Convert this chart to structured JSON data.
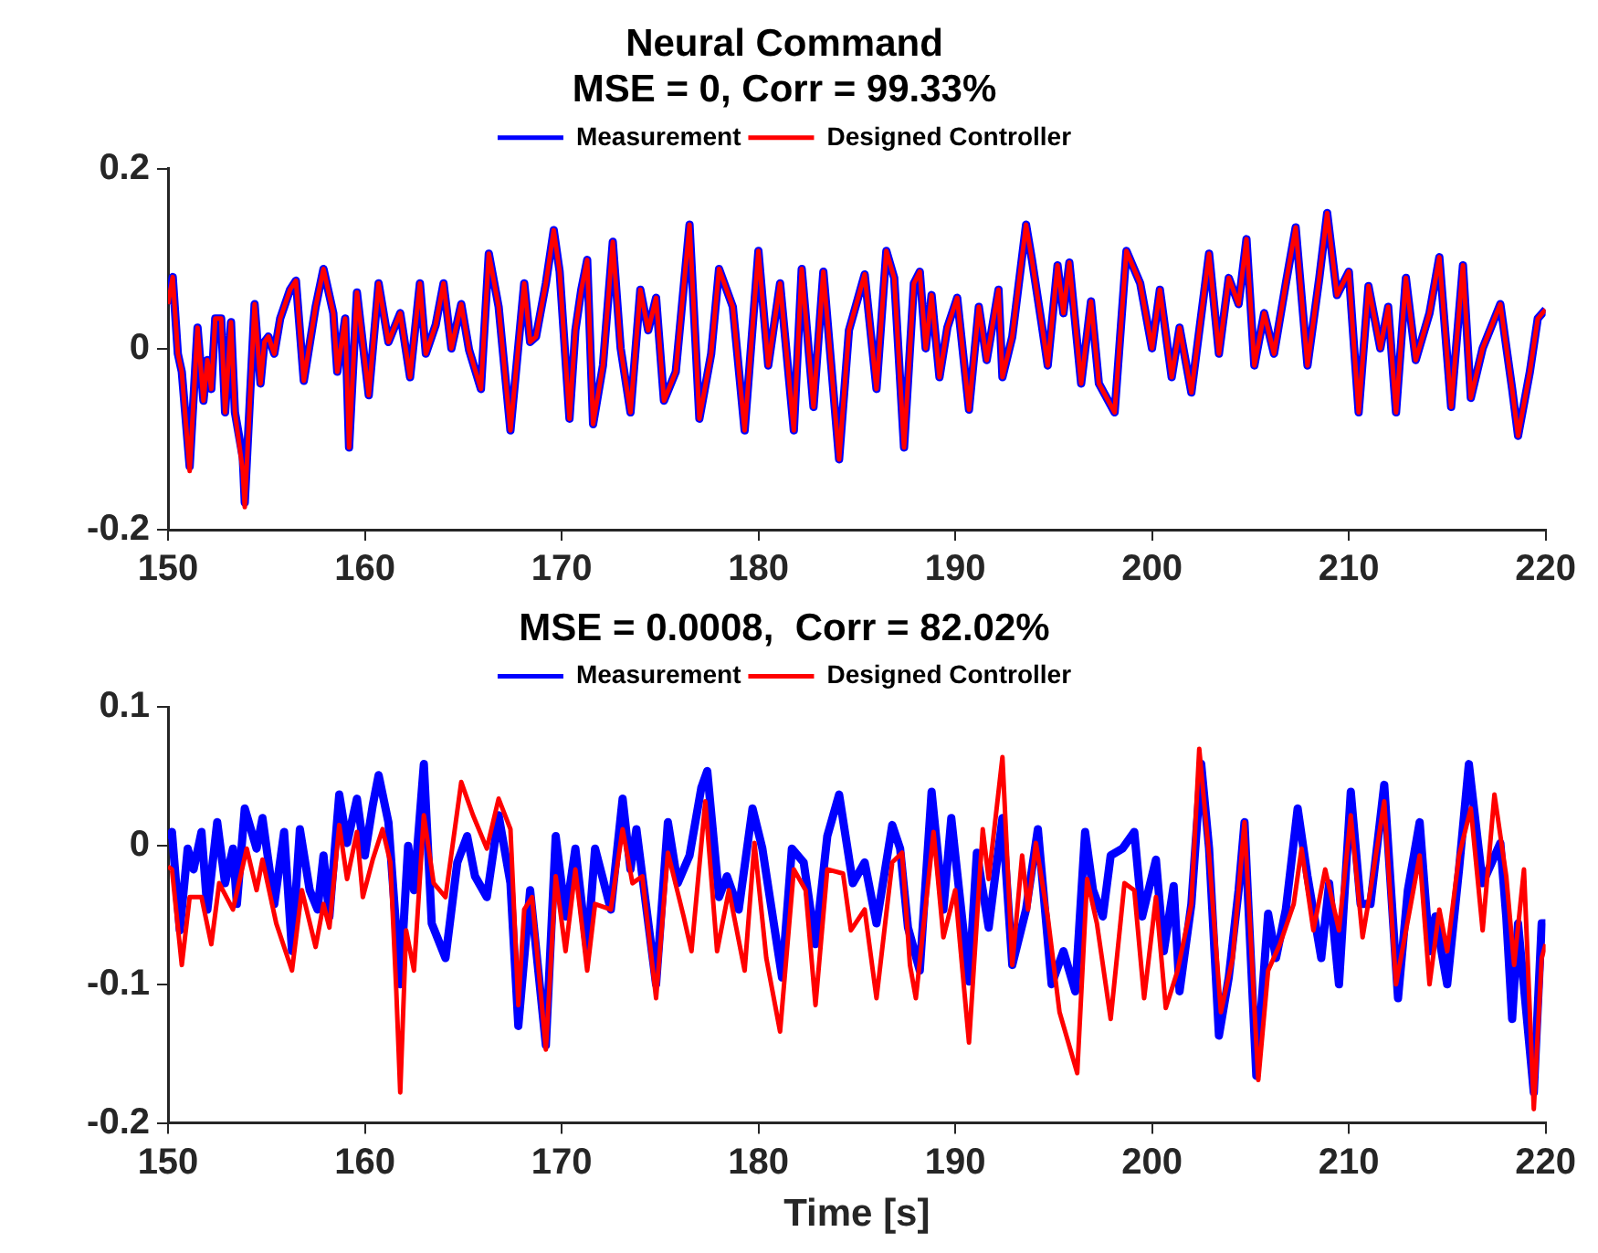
{
  "chart_data": [
    {
      "type": "line",
      "title": "Neural Command",
      "subtitle": "MSE = 0, Corr = 99.33%",
      "xlim": [
        150,
        220
      ],
      "xticks": [
        150,
        160,
        170,
        180,
        190,
        200,
        210,
        220
      ],
      "ylim": [
        -0.2,
        0.2
      ],
      "yticks": [
        -0.2,
        0,
        0.2
      ],
      "grid": false,
      "legend": "top",
      "marker": "none",
      "line_style": "solid",
      "x": [
        150.0,
        150.24,
        150.5,
        150.7,
        151.1,
        151.5,
        151.8,
        152.0,
        152.2,
        152.4,
        152.7,
        152.9,
        153.2,
        153.4,
        153.8,
        153.9,
        154.4,
        154.7,
        154.9,
        155.1,
        155.4,
        155.7,
        156.2,
        156.5,
        156.9,
        157.5,
        157.9,
        158.4,
        158.6,
        159.0,
        159.2,
        159.6,
        160.2,
        160.7,
        161.2,
        161.8,
        162.3,
        162.8,
        163.1,
        163.6,
        164.0,
        164.4,
        164.9,
        165.3,
        165.9,
        166.3,
        166.8,
        167.4,
        168.1,
        168.4,
        168.7,
        169.2,
        169.6,
        169.9,
        170.4,
        170.7,
        171.0,
        171.3,
        171.6,
        172.1,
        172.6,
        173.0,
        173.5,
        174.0,
        174.4,
        174.8,
        175.2,
        175.8,
        176.5,
        177.0,
        177.6,
        178.0,
        178.7,
        179.3,
        180.0,
        180.5,
        181.1,
        181.8,
        182.2,
        182.8,
        183.3,
        184.1,
        184.6,
        185.4,
        186.0,
        186.5,
        186.9,
        187.4,
        187.9,
        188.2,
        188.5,
        188.8,
        189.2,
        189.6,
        190.1,
        190.7,
        191.2,
        191.6,
        192.2,
        192.4,
        192.9,
        193.6,
        193.9,
        194.4,
        194.7,
        195.2,
        195.5,
        195.8,
        196.4,
        196.9,
        197.3,
        198.1,
        198.7,
        199.4,
        200.0,
        200.4,
        201.0,
        201.4,
        202.0,
        202.9,
        203.4,
        203.9,
        204.4,
        204.8,
        205.2,
        205.7,
        206.2,
        206.8,
        207.3,
        207.9,
        208.5,
        208.9,
        209.4,
        210.0,
        210.5,
        211.0,
        211.6,
        212.0,
        212.4,
        212.9,
        213.4,
        214.1,
        214.6,
        215.2,
        215.8,
        216.2,
        216.8,
        217.7,
        218.3,
        218.6,
        219.2,
        219.6,
        220.0
      ],
      "series": [
        {
          "name": "Measurement",
          "color": "#0000ff",
          "values": [
            0.05,
            0.08,
            -0.005,
            -0.025,
            -0.13,
            0.024,
            -0.057,
            -0.012,
            -0.044,
            0.034,
            0.034,
            -0.07,
            0.03,
            -0.07,
            -0.12,
            -0.17,
            0.05,
            -0.038,
            0.008,
            0.014,
            -0.005,
            0.034,
            0.066,
            0.076,
            -0.035,
            0.047,
            0.089,
            0.04,
            -0.025,
            0.034,
            -0.109,
            0.063,
            -0.051,
            0.073,
            0.008,
            0.04,
            -0.031,
            0.073,
            -0.005,
            0.027,
            0.073,
            0.001,
            0.05,
            -0.001,
            -0.044,
            0.106,
            0.047,
            -0.09,
            0.073,
            0.008,
            0.014,
            0.073,
            0.132,
            0.086,
            -0.077,
            0.021,
            0.066,
            0.099,
            -0.083,
            -0.018,
            0.119,
            0.001,
            -0.07,
            0.066,
            0.021,
            0.057,
            -0.057,
            -0.025,
            0.138,
            -0.077,
            -0.005,
            0.089,
            0.047,
            -0.09,
            0.109,
            -0.018,
            0.073,
            -0.09,
            0.089,
            -0.064,
            0.086,
            -0.122,
            0.021,
            0.083,
            -0.044,
            0.109,
            0.079,
            -0.109,
            0.073,
            0.086,
            0.001,
            0.06,
            -0.031,
            0.024,
            0.057,
            -0.067,
            0.047,
            -0.012,
            0.066,
            -0.031,
            0.014,
            0.138,
            0.099,
            0.027,
            -0.018,
            0.093,
            0.04,
            0.096,
            -0.038,
            0.053,
            -0.038,
            -0.07,
            0.109,
            0.073,
            0.001,
            0.066,
            -0.031,
            0.024,
            -0.048,
            0.106,
            -0.005,
            0.079,
            0.05,
            0.122,
            -0.018,
            0.04,
            -0.005,
            0.073,
            0.135,
            -0.018,
            0.079,
            0.151,
            0.06,
            0.086,
            -0.07,
            0.07,
            0.001,
            0.047,
            -0.07,
            0.079,
            -0.012,
            0.04,
            0.102,
            -0.064,
            0.093,
            -0.054,
            0.001,
            0.05,
            -0.044,
            -0.096,
            -0.025,
            0.034,
            0.044
          ]
        },
        {
          "name": "Designed Controller",
          "color": "#ff0000",
          "values": [
            0.05,
            0.08,
            -0.005,
            -0.025,
            -0.135,
            0.024,
            -0.057,
            -0.012,
            -0.044,
            0.034,
            0.034,
            -0.07,
            0.03,
            -0.07,
            -0.135,
            -0.175,
            0.05,
            -0.038,
            0.008,
            0.014,
            -0.005,
            0.034,
            0.066,
            0.076,
            -0.035,
            0.047,
            0.089,
            0.04,
            -0.025,
            0.034,
            -0.109,
            0.063,
            -0.051,
            0.073,
            0.008,
            0.04,
            -0.031,
            0.073,
            -0.005,
            0.027,
            0.073,
            0.001,
            0.05,
            -0.001,
            -0.044,
            0.106,
            0.047,
            -0.09,
            0.073,
            0.008,
            0.014,
            0.073,
            0.132,
            0.086,
            -0.077,
            0.021,
            0.066,
            0.099,
            -0.083,
            -0.018,
            0.119,
            0.001,
            -0.07,
            0.066,
            0.021,
            0.057,
            -0.057,
            -0.025,
            0.138,
            -0.077,
            -0.005,
            0.089,
            0.047,
            -0.09,
            0.109,
            -0.018,
            0.073,
            -0.09,
            0.089,
            -0.064,
            0.086,
            -0.122,
            0.021,
            0.083,
            -0.044,
            0.109,
            0.079,
            -0.109,
            0.073,
            0.086,
            0.001,
            0.06,
            -0.031,
            0.024,
            0.057,
            -0.067,
            0.047,
            -0.012,
            0.066,
            -0.031,
            0.014,
            0.138,
            0.099,
            0.027,
            -0.018,
            0.093,
            0.04,
            0.096,
            -0.038,
            0.053,
            -0.038,
            -0.07,
            0.109,
            0.073,
            0.001,
            0.066,
            -0.031,
            0.024,
            -0.048,
            0.106,
            -0.005,
            0.079,
            0.05,
            0.122,
            -0.018,
            0.04,
            -0.005,
            0.073,
            0.135,
            -0.018,
            0.079,
            0.151,
            0.06,
            0.086,
            -0.07,
            0.07,
            0.001,
            0.047,
            -0.07,
            0.079,
            -0.012,
            0.04,
            0.102,
            -0.064,
            0.093,
            -0.054,
            0.001,
            0.05,
            -0.044,
            -0.096,
            -0.025,
            0.034,
            0.044
          ]
        }
      ]
    },
    {
      "type": "line",
      "title": "MSE = 0.0008,  Corr = 82.02%",
      "xlabel": "Time [s]",
      "xlim": [
        150,
        220
      ],
      "xticks": [
        150,
        160,
        170,
        180,
        190,
        200,
        210,
        220
      ],
      "ylim": [
        -0.2,
        0.1
      ],
      "yticks": [
        -0.2,
        -0.1,
        0,
        0.1
      ],
      "grid": false,
      "legend": "top",
      "marker": "none",
      "line_style": "solid",
      "series": [
        {
          "name": "Measurement",
          "color": "#0000ff",
          "x": [
            150.0,
            150.2,
            150.6,
            151.0,
            151.3,
            151.7,
            152.0,
            152.5,
            152.9,
            153.3,
            153.5,
            153.9,
            154.5,
            154.8,
            155.4,
            155.9,
            156.3,
            156.7,
            157.2,
            157.6,
            157.9,
            158.2,
            158.7,
            159.1,
            159.6,
            160.0,
            160.4,
            160.7,
            161.2,
            161.8,
            162.2,
            162.5,
            163.0,
            163.4,
            164.1,
            164.7,
            165.2,
            165.6,
            166.2,
            166.8,
            167.4,
            167.8,
            168.4,
            169.2,
            169.7,
            170.2,
            170.7,
            171.3,
            171.7,
            172.5,
            173.1,
            173.5,
            173.8,
            174.8,
            175.4,
            175.9,
            176.5,
            177.1,
            177.4,
            178.0,
            178.4,
            179.0,
            179.7,
            180.2,
            181.2,
            181.7,
            182.3,
            182.9,
            183.5,
            184.1,
            184.8,
            185.4,
            186.0,
            186.8,
            187.2,
            187.6,
            188.2,
            188.8,
            189.4,
            189.8,
            190.7,
            191.1,
            191.7,
            192.4,
            192.9,
            193.6,
            194.2,
            194.9,
            195.5,
            196.1,
            196.6,
            197.0,
            197.5,
            197.9,
            198.5,
            199.1,
            199.5,
            200.2,
            200.6,
            201.1,
            201.4,
            202.0,
            202.5,
            202.9,
            203.4,
            203.9,
            204.4,
            204.7,
            205.3,
            205.9,
            206.3,
            206.8,
            207.4,
            207.9,
            208.6,
            209.0,
            209.5,
            210.1,
            210.6,
            211.1,
            211.8,
            212.5,
            213.0,
            213.6,
            214.1,
            214.4,
            215.0,
            215.6,
            216.1,
            216.8,
            217.7,
            218.0,
            218.3,
            218.6,
            219.4,
            219.8,
            220.0
          ],
          "values": [
            0.005,
            0.01,
            -0.061,
            -0.002,
            -0.017,
            0.01,
            -0.046,
            0.017,
            -0.027,
            -0.002,
            -0.042,
            0.027,
            -0.002,
            0.02,
            -0.042,
            0.01,
            -0.076,
            0.012,
            -0.032,
            -0.046,
            -0.007,
            -0.051,
            0.037,
            0.002,
            0.034,
            -0.007,
            0.029,
            0.051,
            0.017,
            -0.1,
            0.0,
            -0.032,
            0.059,
            -0.056,
            -0.081,
            -0.012,
            0.007,
            -0.022,
            -0.037,
            0.022,
            -0.027,
            -0.13,
            -0.032,
            -0.144,
            0.007,
            -0.051,
            -0.002,
            -0.076,
            -0.002,
            -0.046,
            0.034,
            -0.017,
            0.012,
            -0.1,
            0.017,
            -0.027,
            -0.007,
            0.042,
            0.054,
            -0.037,
            -0.022,
            -0.046,
            0.027,
            -0.002,
            -0.095,
            -0.002,
            -0.012,
            -0.071,
            0.007,
            0.037,
            -0.027,
            -0.012,
            -0.056,
            0.015,
            -0.002,
            -0.059,
            -0.09,
            0.039,
            -0.046,
            0.02,
            -0.098,
            -0.005,
            -0.059,
            0.02,
            -0.086,
            -0.046,
            0.012,
            -0.1,
            -0.076,
            -0.105,
            0.01,
            -0.032,
            -0.051,
            -0.007,
            -0.002,
            0.01,
            -0.051,
            -0.01,
            -0.076,
            -0.029,
            -0.105,
            -0.042,
            0.059,
            -0.002,
            -0.137,
            -0.095,
            -0.032,
            0.017,
            -0.166,
            -0.049,
            -0.081,
            -0.046,
            0.027,
            -0.022,
            -0.081,
            -0.027,
            -0.1,
            0.039,
            -0.042,
            -0.042,
            0.044,
            -0.11,
            -0.032,
            0.017,
            -0.076,
            -0.051,
            -0.1,
            -0.017,
            0.059,
            -0.027,
            0.002,
            -0.051,
            -0.125,
            -0.056,
            -0.178,
            -0.056,
            -0.056
          ]
        },
        {
          "name": "Designed Controller",
          "color": "#ff0000",
          "x": [
            150.0,
            150.2,
            150.7,
            151.1,
            151.7,
            152.2,
            152.6,
            153.3,
            154.0,
            154.5,
            154.8,
            155.5,
            156.3,
            156.8,
            157.5,
            157.9,
            158.2,
            158.7,
            159.1,
            159.6,
            159.9,
            160.4,
            160.9,
            161.3,
            161.6,
            161.8,
            162.1,
            162.5,
            163.0,
            163.5,
            164.1,
            164.9,
            165.5,
            166.2,
            166.8,
            167.4,
            167.8,
            168.1,
            168.5,
            169.2,
            169.7,
            170.2,
            170.7,
            171.3,
            171.7,
            172.5,
            173.1,
            173.6,
            174.1,
            174.8,
            175.4,
            176.2,
            176.6,
            177.3,
            177.9,
            178.5,
            179.3,
            179.8,
            180.4,
            181.1,
            181.8,
            182.4,
            182.9,
            183.5,
            184.3,
            184.7,
            185.4,
            186.0,
            186.8,
            187.3,
            187.7,
            188.0,
            188.9,
            189.4,
            190.0,
            190.7,
            191.4,
            191.7,
            192.4,
            192.9,
            193.4,
            193.7,
            194.1,
            194.7,
            195.3,
            196.2,
            196.7,
            197.2,
            197.9,
            198.6,
            199.1,
            199.6,
            200.2,
            200.7,
            201.3,
            202.0,
            202.4,
            202.9,
            203.5,
            204.1,
            204.7,
            205.4,
            205.9,
            206.5,
            207.2,
            207.6,
            208.2,
            208.8,
            209.5,
            210.1,
            210.7,
            211.1,
            211.8,
            212.4,
            213.1,
            213.6,
            214.1,
            214.6,
            215.0,
            215.6,
            216.2,
            216.8,
            217.4,
            218.0,
            218.4,
            218.9,
            219.4,
            219.8,
            220.0
          ],
          "values": [
            -0.015,
            -0.017,
            -0.086,
            -0.037,
            -0.037,
            -0.071,
            -0.027,
            -0.046,
            -0.002,
            -0.032,
            -0.01,
            -0.056,
            -0.09,
            -0.032,
            -0.073,
            -0.042,
            -0.059,
            0.015,
            -0.024,
            0.01,
            -0.037,
            -0.01,
            0.012,
            -0.012,
            -0.105,
            -0.178,
            -0.061,
            -0.09,
            0.022,
            -0.027,
            -0.037,
            0.046,
            0.022,
            -0.002,
            0.034,
            0.012,
            -0.115,
            -0.046,
            -0.037,
            -0.147,
            -0.022,
            -0.076,
            -0.017,
            -0.09,
            -0.042,
            -0.046,
            0.012,
            -0.027,
            -0.022,
            -0.11,
            -0.005,
            -0.051,
            -0.076,
            0.032,
            -0.076,
            -0.032,
            -0.09,
            0.002,
            -0.081,
            -0.134,
            -0.017,
            -0.032,
            -0.115,
            -0.017,
            -0.02,
            -0.061,
            -0.046,
            -0.11,
            -0.012,
            -0.005,
            -0.086,
            -0.11,
            0.01,
            -0.066,
            -0.032,
            -0.142,
            0.012,
            -0.024,
            0.064,
            -0.086,
            -0.007,
            -0.046,
            0.002,
            -0.051,
            -0.12,
            -0.164,
            -0.024,
            -0.056,
            -0.125,
            -0.027,
            -0.032,
            -0.11,
            -0.037,
            -0.117,
            -0.09,
            -0.042,
            0.07,
            -0.007,
            -0.12,
            -0.081,
            0.017,
            -0.169,
            -0.09,
            -0.071,
            -0.042,
            -0.002,
            -0.061,
            -0.017,
            -0.061,
            0.022,
            -0.066,
            -0.032,
            0.032,
            -0.1,
            -0.046,
            -0.007,
            -0.1,
            -0.046,
            -0.076,
            -0.007,
            0.027,
            -0.061,
            0.037,
            -0.022,
            -0.086,
            -0.017,
            -0.19,
            -0.081,
            -0.071
          ]
        }
      ]
    }
  ]
}
